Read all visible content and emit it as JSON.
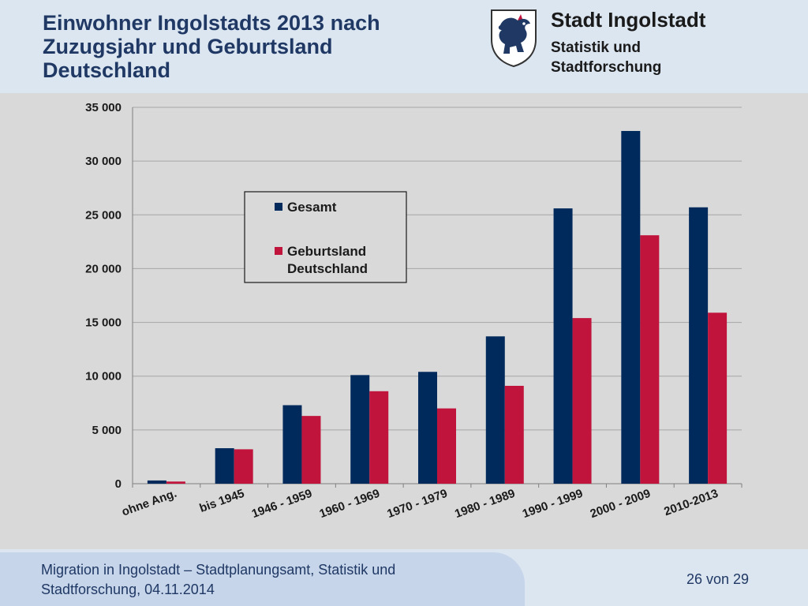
{
  "header": {
    "title": "Einwohner Ingolstadts 2013 nach Zuzugsjahr und Geburtsland Deutschland",
    "org_name": "Stadt Ingolstadt",
    "org_dept": "Statistik und Stadtforschung",
    "crest_icon": "ingolstadt-panther-crest",
    "title_color": "#1f3864"
  },
  "footer": {
    "text": "Migration in Ingolstadt – Stadtplanungsamt, Statistik und Stadtforschung, 04.11.2014",
    "page": "26 von 29"
  },
  "chart_data": {
    "type": "bar",
    "categories": [
      "ohne Ang.",
      "bis 1945",
      "1946 - 1959",
      "1960 - 1969",
      "1970 - 1979",
      "1980 - 1989",
      "1990 - 1999",
      "2000 - 2009",
      "2010-2013"
    ],
    "series": [
      {
        "name": "Gesamt",
        "color": "#002a5c",
        "values": [
          300,
          3300,
          7300,
          10100,
          10400,
          13700,
          25600,
          32800,
          25700
        ]
      },
      {
        "name": "Geburtsland Deutschland",
        "color": "#c0143c",
        "values": [
          200,
          3200,
          6300,
          8600,
          7000,
          9100,
          15400,
          23100,
          15900
        ]
      }
    ],
    "yticks": [
      "0",
      "5 000",
      "10 000",
      "15 000",
      "20 000",
      "25 000",
      "30 000",
      "35 000"
    ],
    "ylim": [
      0,
      35000
    ],
    "grid": true,
    "legend_position": "inside-upper-left",
    "title": "",
    "xlabel": "",
    "ylabel": ""
  }
}
